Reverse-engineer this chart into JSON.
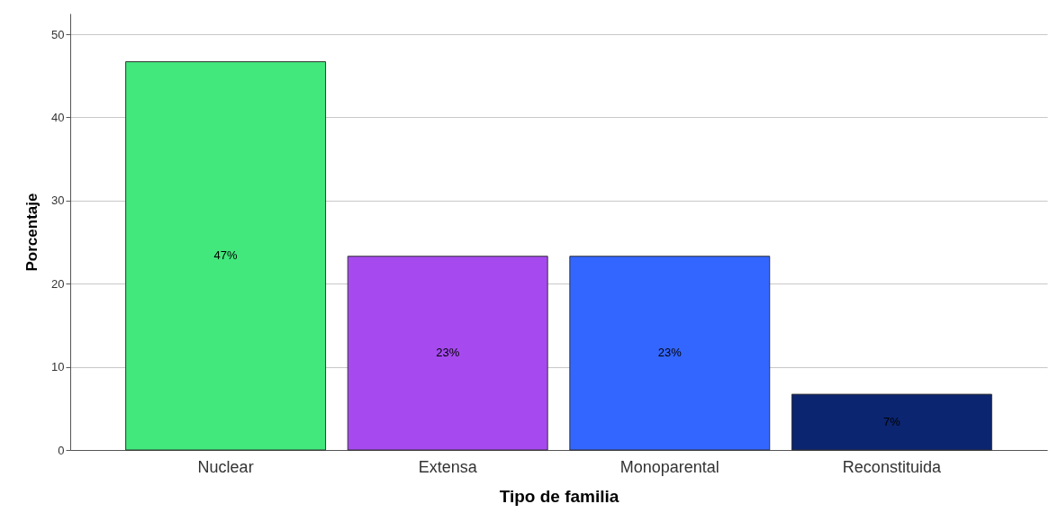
{
  "chart_data": {
    "type": "bar",
    "xlabel": "Tipo de familia",
    "ylabel": "Porcentaje",
    "categories": [
      "Nuclear",
      "Extensa",
      "Monoparental",
      "Reconstituida"
    ],
    "values": [
      46.7,
      23.3,
      23.3,
      6.7
    ],
    "colors": [
      "#42e87c",
      "#a64af0",
      "#3366ff",
      "#0b2570"
    ],
    "value_labels": [
      "47%",
      "23%",
      "23%",
      "7%"
    ],
    "ylim": [
      0,
      52.5
    ],
    "yticks": [
      0,
      10,
      20,
      30,
      40,
      50
    ],
    "grid": "y"
  }
}
